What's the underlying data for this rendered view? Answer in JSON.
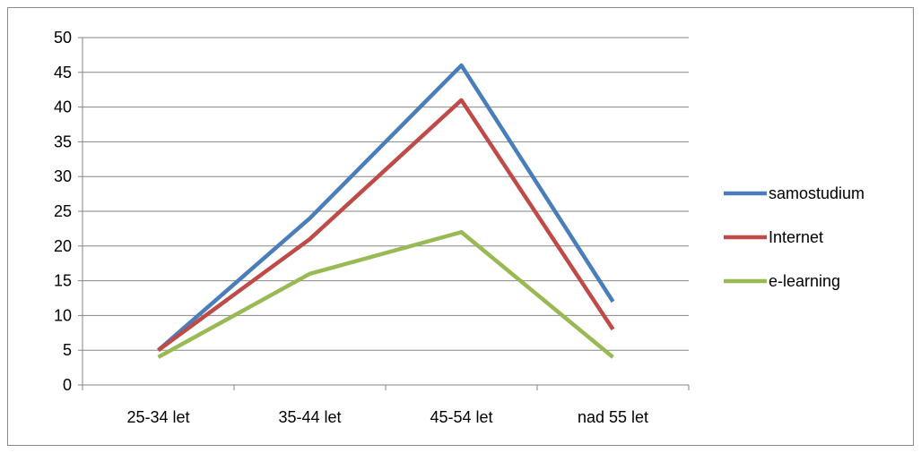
{
  "chart_data": {
    "type": "line",
    "title": "",
    "xlabel": "",
    "ylabel": "",
    "categories": [
      "25-34 let",
      "35-44 let",
      "45-54 let",
      "nad 55 let"
    ],
    "ylim": [
      0,
      50
    ],
    "yticks": [
      0,
      5,
      10,
      15,
      20,
      25,
      30,
      35,
      40,
      45,
      50
    ],
    "grid": true,
    "legend_position": "right",
    "series": [
      {
        "name": "samostudium",
        "values": [
          5,
          24,
          46,
          12
        ],
        "color": "#4a7ebb"
      },
      {
        "name": "Internet",
        "values": [
          5,
          21,
          41,
          8
        ],
        "color": "#be4b48"
      },
      {
        "name": "e-learning",
        "values": [
          4,
          16,
          22,
          4
        ],
        "color": "#98b954"
      }
    ]
  }
}
